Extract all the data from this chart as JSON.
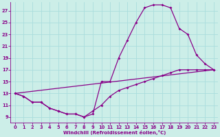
{
  "xlabel": "Windchill (Refroidissement éolien,°C)",
  "bg_color": "#cceee8",
  "line_color": "#880088",
  "grid_color": "#aadddd",
  "text_color": "#880088",
  "xlim_min": -0.5,
  "xlim_max": 23.5,
  "ylim_min": 8.0,
  "ylim_max": 28.5,
  "xticks": [
    0,
    1,
    2,
    3,
    4,
    5,
    6,
    7,
    8,
    9,
    10,
    11,
    12,
    13,
    14,
    15,
    16,
    17,
    18,
    19,
    20,
    21,
    22,
    23
  ],
  "yticks": [
    9,
    11,
    13,
    15,
    17,
    19,
    21,
    23,
    25,
    27
  ],
  "line1_x": [
    0,
    1,
    2,
    3,
    4,
    5,
    6,
    7,
    8,
    9,
    10,
    11,
    12,
    13,
    14,
    15,
    16,
    17,
    18,
    19,
    20,
    21,
    22,
    23
  ],
  "line1_y": [
    13,
    12.5,
    11.5,
    11.5,
    10.5,
    10,
    9.5,
    9.5,
    9,
    9.5,
    15,
    15,
    19,
    22,
    25,
    27.5,
    28,
    28,
    27.5,
    24,
    23,
    19.5,
    18,
    17
  ],
  "line2_x": [
    0,
    1,
    2,
    3,
    4,
    5,
    6,
    7,
    8,
    9,
    10,
    11,
    12,
    13,
    14,
    15,
    16,
    17,
    18,
    19,
    20,
    21,
    22,
    23
  ],
  "line2_y": [
    13,
    12.5,
    11.5,
    11.5,
    10.5,
    10,
    9.5,
    9.5,
    9,
    10,
    11,
    12.5,
    13.5,
    14,
    14.5,
    15,
    15.5,
    16,
    16.5,
    17,
    17,
    17,
    17,
    17
  ],
  "line3_x": [
    0,
    23
  ],
  "line3_y": [
    13,
    17
  ],
  "marker_size": 2,
  "lw": 0.9,
  "figsize": [
    3.2,
    2.0
  ],
  "dpi": 100
}
